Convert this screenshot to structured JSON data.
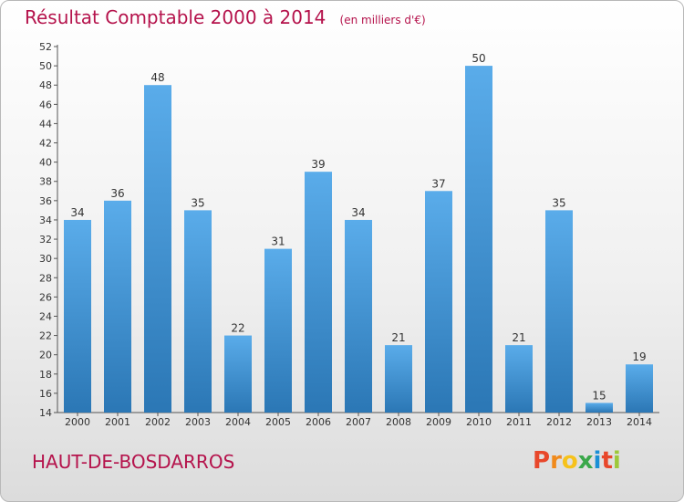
{
  "header": {
    "title": "Résultat Comptable 2000 à 2014",
    "unit_note": "(en milliers d'€)"
  },
  "footer": {
    "commune": "HAUT-DE-BOSDARROS",
    "logo_text": "Proxiti"
  },
  "colors": {
    "title": "#b5134c",
    "bar_light": "#5aacea",
    "bar_dark": "#2b77b5",
    "logo_letters": [
      "#e8472b",
      "#f08a1c",
      "#f6c21b",
      "#3aa84a",
      "#1a8fd6",
      "#e8472b",
      "#9dc83a"
    ]
  },
  "chart_data": {
    "type": "bar",
    "title": "Résultat Comptable 2000 à 2014",
    "subtitle": "(en milliers d'€)",
    "xlabel": "",
    "ylabel": "",
    "categories": [
      "2000",
      "2001",
      "2002",
      "2003",
      "2004",
      "2005",
      "2006",
      "2007",
      "2008",
      "2009",
      "2010",
      "2011",
      "2012",
      "2013",
      "2014"
    ],
    "values": [
      34,
      36,
      48,
      35,
      22,
      31,
      39,
      34,
      21,
      37,
      50,
      21,
      35,
      15,
      19
    ],
    "ylim": [
      14,
      52
    ],
    "yticks": [
      14,
      16,
      18,
      20,
      22,
      24,
      26,
      28,
      30,
      32,
      34,
      36,
      38,
      40,
      42,
      44,
      46,
      48,
      50,
      52
    ],
    "grid": false,
    "legend": "none"
  }
}
